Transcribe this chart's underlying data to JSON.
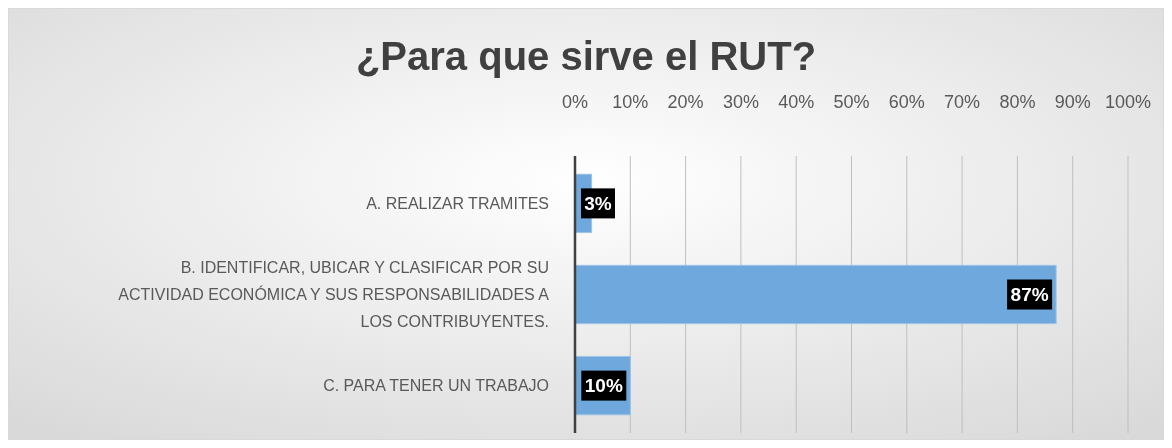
{
  "chart_data": {
    "type": "bar",
    "orientation": "horizontal",
    "title": "¿Para que sirve el RUT?",
    "categories": [
      "A. REALIZAR TRAMITES",
      "B. IDENTIFICAR, UBICAR Y CLASIFICAR POR SU ACTIVIDAD ECONÓMICA Y SUS RESPONSABILIDADES A LOS CONTRIBUYENTES.",
      "C. PARA TENER UN TRABAJO"
    ],
    "values": [
      3,
      87,
      10
    ],
    "color": "#6fa8dc",
    "value_labels": [
      "3%",
      "87%",
      "10%"
    ],
    "xlim": [
      0,
      100
    ],
    "xticks": [
      {
        "value": 0,
        "label": "0%"
      },
      {
        "value": 10,
        "label": "10%"
      },
      {
        "value": 20,
        "label": "20%"
      },
      {
        "value": 30,
        "label": "30%"
      },
      {
        "value": 40,
        "label": "40%"
      },
      {
        "value": 50,
        "label": "50%"
      },
      {
        "value": 60,
        "label": "60%"
      },
      {
        "value": 70,
        "label": "70%"
      },
      {
        "value": 80,
        "label": "80%"
      },
      {
        "value": 90,
        "label": "90%"
      },
      {
        "value": 100,
        "label": "100%"
      }
    ],
    "grid": "x"
  }
}
